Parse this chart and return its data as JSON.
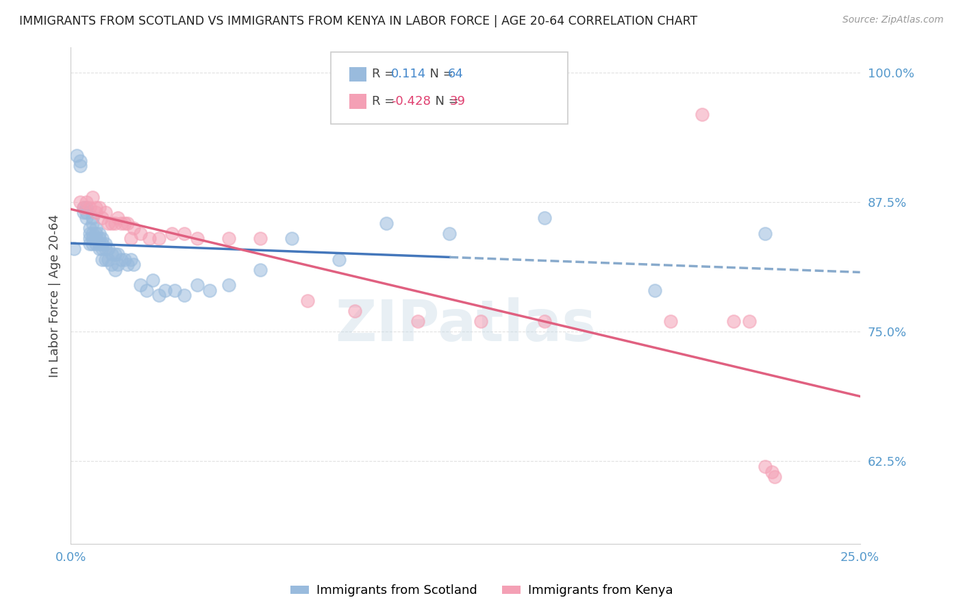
{
  "title": "IMMIGRANTS FROM SCOTLAND VS IMMIGRANTS FROM KENYA IN LABOR FORCE | AGE 20-64 CORRELATION CHART",
  "source": "Source: ZipAtlas.com",
  "ylabel": "In Labor Force | Age 20-64",
  "x_min": 0.0,
  "x_max": 0.25,
  "y_min": 0.545,
  "y_max": 1.025,
  "x_ticks": [
    0.0,
    0.05,
    0.1,
    0.15,
    0.2,
    0.25
  ],
  "y_ticks": [
    0.625,
    0.75,
    0.875,
    1.0
  ],
  "y_tick_labels": [
    "62.5%",
    "75.0%",
    "87.5%",
    "100.0%"
  ],
  "scotland_color": "#99bbdd",
  "kenya_color": "#f4a0b5",
  "scotland_R": 0.114,
  "scotland_N": 64,
  "kenya_R": -0.428,
  "kenya_N": 39,
  "scotland_line_color": "#4477bb",
  "scotland_dash_color": "#88aacc",
  "kenya_line_color": "#e06080",
  "grid_color": "#dddddd",
  "watermark": "ZIPatlas",
  "legend_scotland_label": "Immigrants from Scotland",
  "legend_kenya_label": "Immigrants from Kenya",
  "scotland_x": [
    0.001,
    0.002,
    0.003,
    0.003,
    0.004,
    0.004,
    0.005,
    0.005,
    0.005,
    0.006,
    0.006,
    0.006,
    0.006,
    0.007,
    0.007,
    0.007,
    0.007,
    0.007,
    0.008,
    0.008,
    0.008,
    0.008,
    0.009,
    0.009,
    0.009,
    0.009,
    0.01,
    0.01,
    0.01,
    0.01,
    0.011,
    0.011,
    0.011,
    0.012,
    0.012,
    0.013,
    0.013,
    0.014,
    0.014,
    0.015,
    0.015,
    0.016,
    0.017,
    0.018,
    0.019,
    0.02,
    0.022,
    0.024,
    0.026,
    0.028,
    0.03,
    0.033,
    0.036,
    0.04,
    0.044,
    0.05,
    0.06,
    0.07,
    0.085,
    0.1,
    0.12,
    0.15,
    0.185,
    0.22
  ],
  "scotland_y": [
    0.83,
    0.92,
    0.915,
    0.91,
    0.87,
    0.865,
    0.86,
    0.87,
    0.865,
    0.85,
    0.845,
    0.84,
    0.835,
    0.86,
    0.855,
    0.845,
    0.84,
    0.835,
    0.85,
    0.845,
    0.84,
    0.835,
    0.845,
    0.84,
    0.835,
    0.83,
    0.84,
    0.835,
    0.83,
    0.82,
    0.835,
    0.83,
    0.82,
    0.83,
    0.82,
    0.825,
    0.815,
    0.825,
    0.81,
    0.825,
    0.815,
    0.82,
    0.82,
    0.815,
    0.82,
    0.815,
    0.795,
    0.79,
    0.8,
    0.785,
    0.79,
    0.79,
    0.785,
    0.795,
    0.79,
    0.795,
    0.81,
    0.84,
    0.82,
    0.855,
    0.845,
    0.86,
    0.79,
    0.845
  ],
  "kenya_x": [
    0.003,
    0.004,
    0.005,
    0.006,
    0.007,
    0.008,
    0.008,
    0.009,
    0.01,
    0.011,
    0.012,
    0.013,
    0.014,
    0.015,
    0.016,
    0.017,
    0.018,
    0.019,
    0.02,
    0.022,
    0.025,
    0.028,
    0.032,
    0.036,
    0.04,
    0.05,
    0.06,
    0.075,
    0.09,
    0.11,
    0.13,
    0.15,
    0.19,
    0.2,
    0.21,
    0.215,
    0.22,
    0.222,
    0.223
  ],
  "kenya_y": [
    0.875,
    0.87,
    0.875,
    0.87,
    0.88,
    0.87,
    0.865,
    0.87,
    0.86,
    0.865,
    0.855,
    0.855,
    0.855,
    0.86,
    0.855,
    0.855,
    0.855,
    0.84,
    0.85,
    0.845,
    0.84,
    0.84,
    0.845,
    0.845,
    0.84,
    0.84,
    0.84,
    0.78,
    0.77,
    0.76,
    0.76,
    0.76,
    0.76,
    0.96,
    0.76,
    0.76,
    0.62,
    0.615,
    0.61
  ]
}
